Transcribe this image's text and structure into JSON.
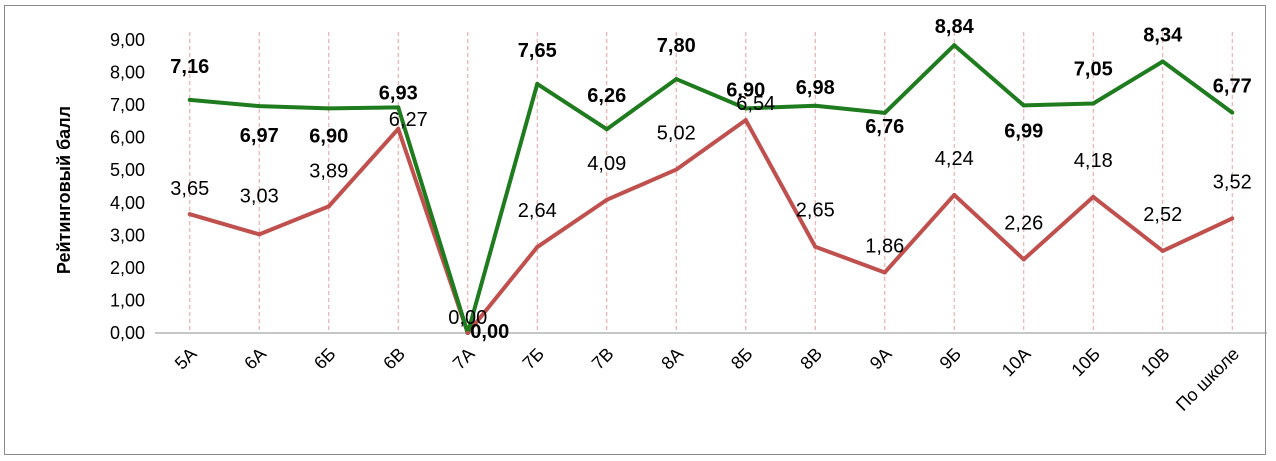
{
  "chart_data": {
    "type": "line",
    "title": "",
    "xlabel": "",
    "ylabel": "Рейтинговый балл",
    "ylim": [
      0,
      9
    ],
    "y_ticks": [
      "0,00",
      "1,00",
      "2,00",
      "3,00",
      "4,00",
      "5,00",
      "6,00",
      "7,00",
      "8,00",
      "9,00"
    ],
    "categories": [
      "5А",
      "6А",
      "6Б",
      "6В",
      "7А",
      "7Б",
      "7В",
      "8А",
      "8Б",
      "8В",
      "9А",
      "9Б",
      "10А",
      "10Б",
      "10В",
      "По школе"
    ],
    "grid": "vertical dashed lines at categories",
    "legend": "none",
    "series": [
      {
        "color": "#1e7b1e",
        "values": [
          7.16,
          6.97,
          6.9,
          6.93,
          0.0,
          7.65,
          6.26,
          7.8,
          6.9,
          6.98,
          6.76,
          8.84,
          6.99,
          7.05,
          8.34,
          6.77
        ],
        "labels": [
          "7,16",
          "6,97",
          "6,90",
          "6,93",
          "0,00",
          "7,65",
          "6,26",
          "7,80",
          "6,90",
          "6,98",
          "6,76",
          "8,84",
          "6,99",
          "7,05",
          "8,34",
          "6,77"
        ]
      },
      {
        "color": "#c0504d",
        "values": [
          3.65,
          3.03,
          3.89,
          6.27,
          0.0,
          2.64,
          4.09,
          5.02,
          6.54,
          2.65,
          1.86,
          4.24,
          2.26,
          4.18,
          2.52,
          3.52
        ],
        "labels": [
          "3,65",
          "3,03",
          "3,89",
          "6,27",
          "0,00",
          "2,64",
          "4,09",
          "5,02",
          "6,54",
          "2,65",
          "1,86",
          "4,24",
          "2,26",
          "4,18",
          "2,52",
          "3,52"
        ]
      }
    ]
  }
}
